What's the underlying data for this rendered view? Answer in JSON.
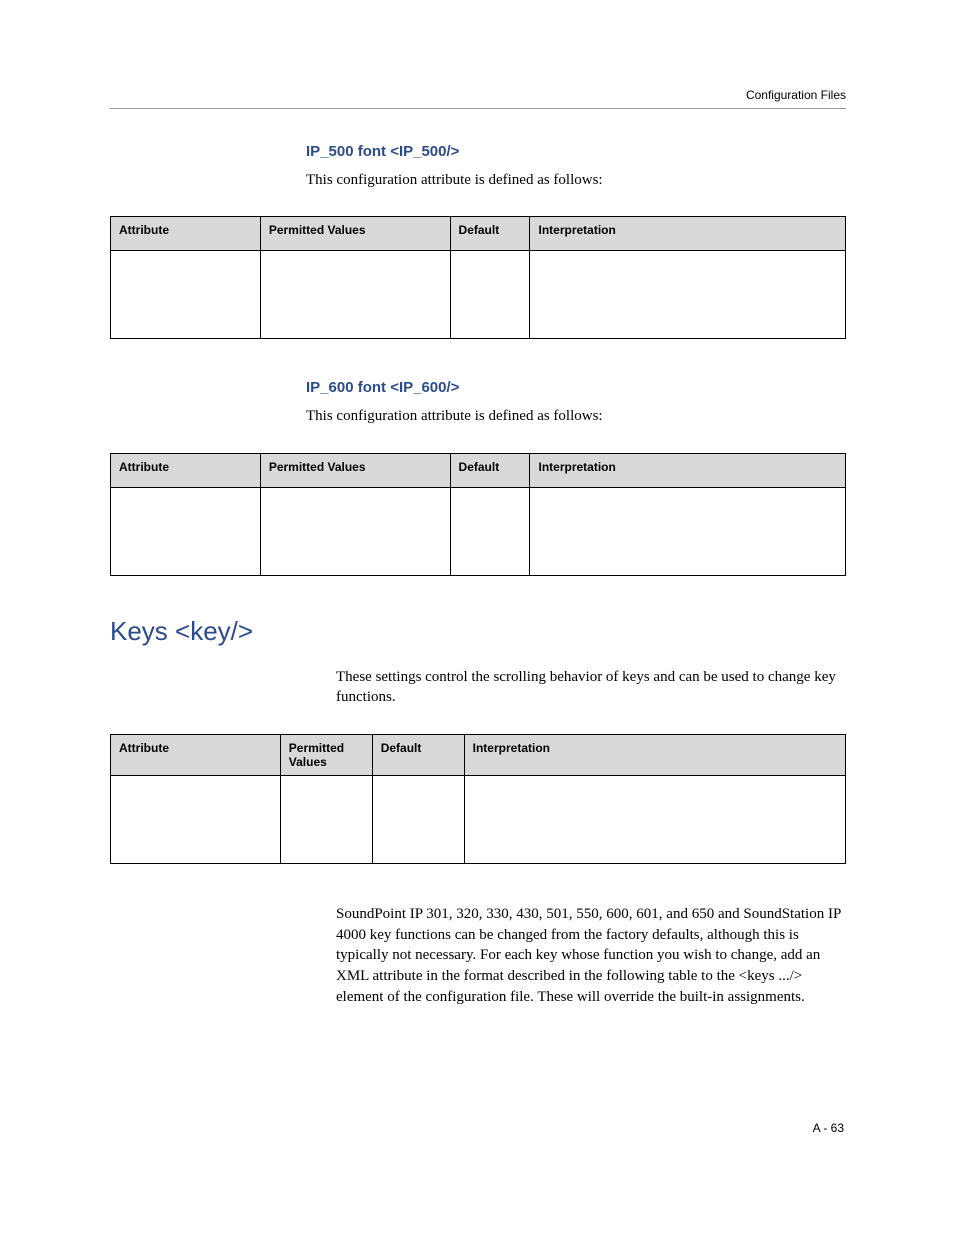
{
  "header": {
    "running": "Configuration Files"
  },
  "sections": [
    {
      "heading": "IP_500 font <IP_500/>",
      "intro": "This configuration attribute is defined as follows:",
      "table": {
        "cols": [
          "Attribute",
          "Permitted Values",
          "Default",
          "Interpretation"
        ],
        "widths": [
          150,
          190,
          80,
          316
        ],
        "rows": [
          [
            "",
            "",
            "",
            ""
          ]
        ]
      }
    },
    {
      "heading": "IP_600 font <IP_600/>",
      "intro": "This configuration attribute is defined as follows:",
      "table": {
        "cols": [
          "Attribute",
          "Permitted Values",
          "Default",
          "Interpretation"
        ],
        "widths": [
          150,
          190,
          80,
          316
        ],
        "rows": [
          [
            "",
            "",
            "",
            ""
          ]
        ]
      }
    }
  ],
  "keys_section": {
    "heading": "Keys <key/>",
    "intro": "These settings control the scrolling behavior of keys and can be used to change key functions.",
    "table": {
      "cols": [
        "Attribute",
        "Permitted Values",
        "Default",
        "Interpretation"
      ],
      "widths": [
        170,
        92,
        92,
        382
      ],
      "rows": [
        [
          "",
          "",
          "",
          ""
        ]
      ]
    },
    "paragraph": "SoundPoint IP 301, 320, 330, 430, 501, 550, 600, 601, and 650 and SoundStation IP 4000 key functions can be changed from the factory defaults, although this is typically not necessary. For each key whose function you wish to change, add an XML attribute in the format described in the following table to the <keys .../> element of the configuration file. These will override the built-in assignments."
  },
  "footer": {
    "page_number": "A - 63"
  }
}
